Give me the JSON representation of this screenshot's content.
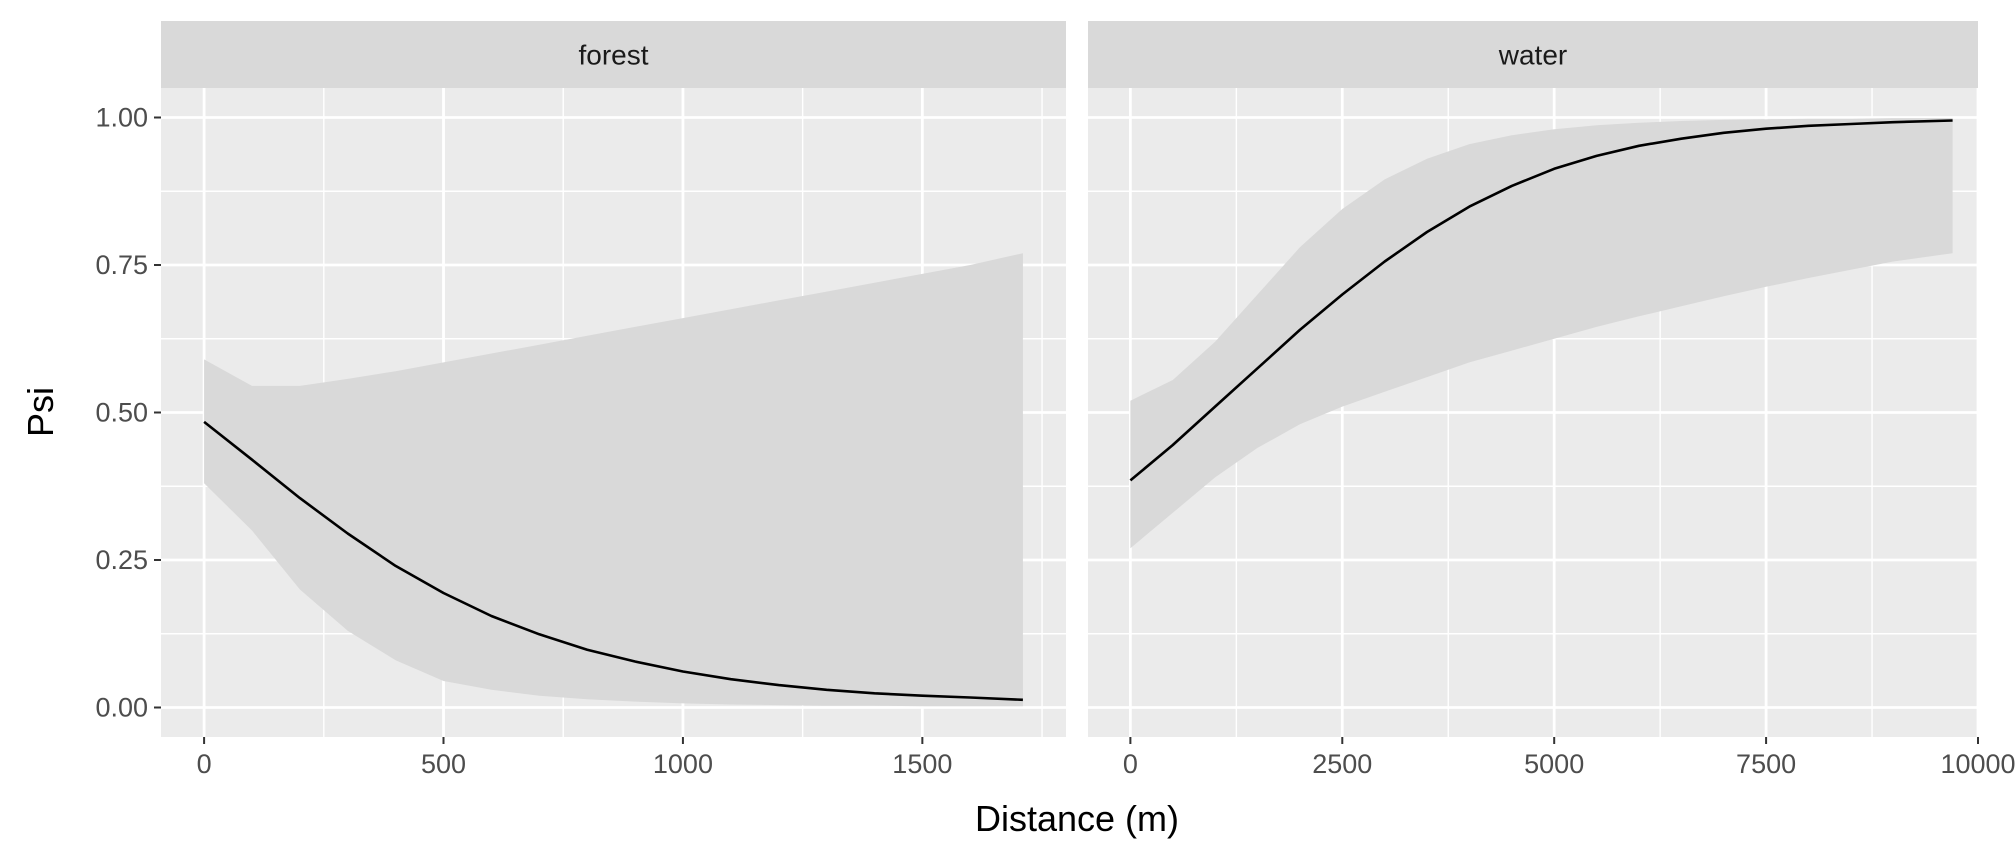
{
  "chart_data": {
    "type": "line",
    "xlabel": "Distance (m)",
    "ylabel": "Psi",
    "y_ticks": [
      0.0,
      0.25,
      0.5,
      0.75,
      1.0
    ],
    "y_tick_labels": [
      "0.00",
      "0.25",
      "0.50",
      "0.75",
      "1.00"
    ],
    "ylim": [
      -0.05,
      1.05
    ],
    "grid": true,
    "legend": "none",
    "colors": {
      "panel_bg": "#ebebeb",
      "strip_bg": "#d9d9d9",
      "ribbon": "#d9d9d9",
      "line": "#000000",
      "grid": "#ffffff"
    },
    "panels": [
      {
        "strip": "forest",
        "xlim": [
          -90,
          1800
        ],
        "x_ticks": [
          0,
          500,
          1000,
          1500
        ],
        "x_tick_labels": [
          "0",
          "500",
          "1000",
          "1500"
        ],
        "x": [
          0,
          100,
          200,
          300,
          400,
          500,
          600,
          700,
          800,
          900,
          1000,
          1100,
          1200,
          1300,
          1400,
          1500,
          1600,
          1710
        ],
        "y": [
          0.484,
          0.42,
          0.355,
          0.295,
          0.24,
          0.194,
          0.155,
          0.124,
          0.098,
          0.078,
          0.061,
          0.048,
          0.038,
          0.03,
          0.024,
          0.02,
          0.017,
          0.013
        ],
        "lower": [
          0.38,
          0.3,
          0.2,
          0.13,
          0.08,
          0.045,
          0.03,
          0.02,
          0.014,
          0.01,
          0.007,
          0.005,
          0.004,
          0.003,
          0.003,
          0.002,
          0.002,
          0.002
        ],
        "upper": [
          0.59,
          0.545,
          0.545,
          0.557,
          0.57,
          0.585,
          0.6,
          0.615,
          0.63,
          0.645,
          0.66,
          0.675,
          0.69,
          0.705,
          0.72,
          0.735,
          0.75,
          0.77
        ]
      },
      {
        "strip": "water",
        "xlim": [
          -500,
          10000
        ],
        "x_ticks": [
          0,
          2500,
          5000,
          7500,
          10000
        ],
        "x_tick_labels": [
          "0",
          "2500",
          "5000",
          "7500",
          "10000"
        ],
        "x": [
          0,
          500,
          1000,
          1500,
          2000,
          2500,
          3000,
          3500,
          4000,
          4500,
          5000,
          5500,
          6000,
          6500,
          7000,
          7500,
          8000,
          8500,
          9000,
          9700
        ],
        "y": [
          0.385,
          0.445,
          0.51,
          0.575,
          0.64,
          0.7,
          0.756,
          0.806,
          0.849,
          0.884,
          0.913,
          0.935,
          0.952,
          0.964,
          0.974,
          0.981,
          0.986,
          0.989,
          0.992,
          0.995
        ],
        "lower": [
          0.27,
          0.33,
          0.39,
          0.44,
          0.48,
          0.51,
          0.535,
          0.56,
          0.585,
          0.605,
          0.625,
          0.645,
          0.663,
          0.68,
          0.697,
          0.713,
          0.728,
          0.742,
          0.756,
          0.77
        ],
        "upper": [
          0.52,
          0.555,
          0.62,
          0.7,
          0.78,
          0.845,
          0.895,
          0.93,
          0.955,
          0.97,
          0.98,
          0.987,
          0.991,
          0.994,
          0.996,
          0.997,
          0.998,
          0.998,
          0.999,
          0.999
        ]
      }
    ]
  }
}
